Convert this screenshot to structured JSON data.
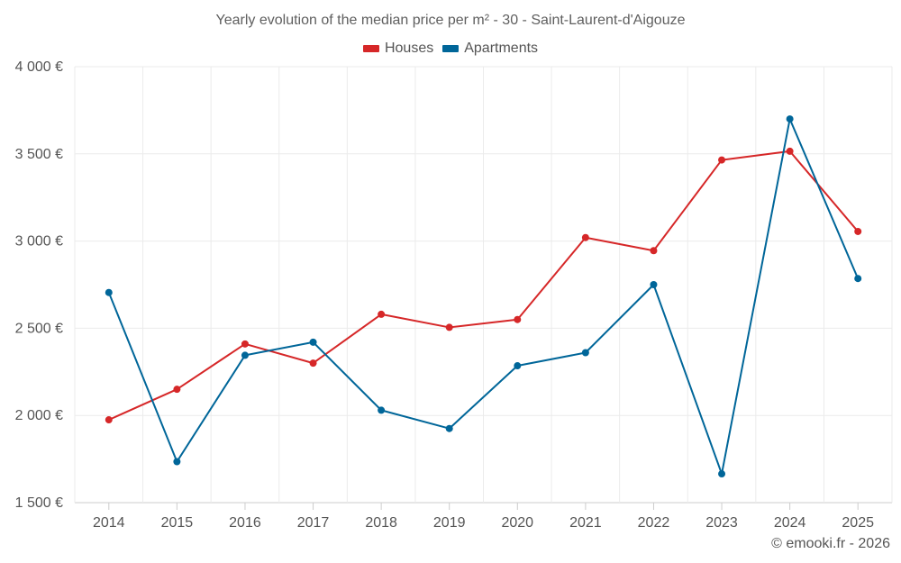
{
  "chart_data": {
    "type": "line",
    "title": "Yearly evolution of the median price per m² - 30 - Saint-Laurent-d'Aigouze",
    "xlabel": "",
    "ylabel": "",
    "categories": [
      "2014",
      "2015",
      "2016",
      "2017",
      "2018",
      "2019",
      "2020",
      "2021",
      "2022",
      "2023",
      "2024",
      "2025"
    ],
    "ylim": [
      1500,
      4000
    ],
    "yticks": [
      1500,
      2000,
      2500,
      3000,
      3500,
      4000
    ],
    "ytick_labels": [
      "1 500 €",
      "2 000 €",
      "2 500 €",
      "3 000 €",
      "3 500 €",
      "4 000 €"
    ],
    "grid": true,
    "legend_position": "top-center",
    "series": [
      {
        "name": "Houses",
        "color": "#d62728",
        "values": [
          1975,
          2150,
          2410,
          2300,
          2580,
          2505,
          2550,
          3020,
          2945,
          3465,
          3515,
          3055
        ]
      },
      {
        "name": "Apartments",
        "color": "#006699",
        "values": [
          2705,
          1735,
          2345,
          2420,
          2030,
          1925,
          2285,
          2360,
          2750,
          1665,
          3700,
          2785
        ]
      }
    ]
  },
  "credit": "© emooki.fr - 2026"
}
